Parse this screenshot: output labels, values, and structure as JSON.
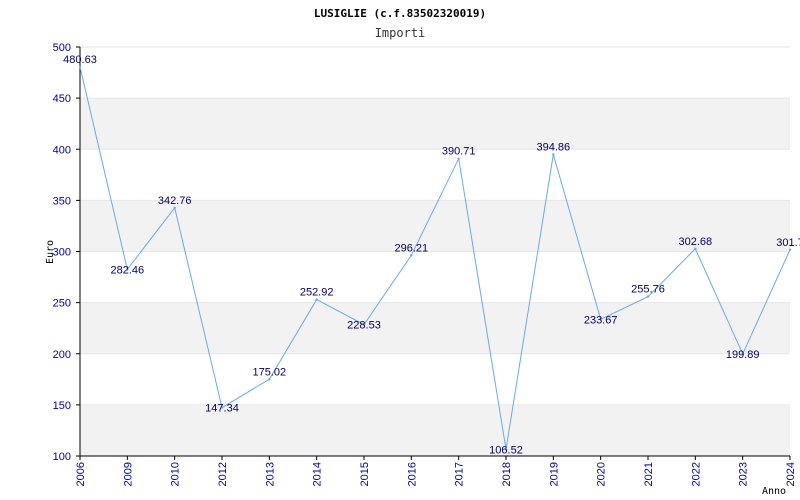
{
  "chart_data": {
    "type": "line",
    "title": "LUSIGLIE (c.f.83502320019)",
    "subtitle": "Importi",
    "xlabel": "Anno",
    "ylabel": "Euro",
    "categories": [
      "2006",
      "2009",
      "2010",
      "2012",
      "2013",
      "2014",
      "2015",
      "2016",
      "2017",
      "2018",
      "2019",
      "2020",
      "2021",
      "2022",
      "2023",
      "2024"
    ],
    "values": [
      480.63,
      282.46,
      342.76,
      147.34,
      175.02,
      252.92,
      228.53,
      296.21,
      390.71,
      106.52,
      394.86,
      233.67,
      255.76,
      302.68,
      199.89,
      301.7
    ],
    "data_labels": [
      "480.63",
      "282.46",
      "342.76",
      "147.34",
      "175.02",
      "252.92",
      "228.53",
      "296.21",
      "390.71",
      "106.52",
      "394.86",
      "233.67",
      "255.76",
      "302.68",
      "199.89",
      "301.7"
    ],
    "y_ticks": [
      "100",
      "150",
      "200",
      "250",
      "300",
      "350",
      "400",
      "450",
      "500"
    ],
    "ylim": [
      100,
      500
    ],
    "grid": true,
    "colors": {
      "line": "#66aaee",
      "band": "#f2f2f2",
      "grid": "#e6e6e6",
      "tick_text": "#0000aa",
      "label_text": "#000066"
    }
  }
}
